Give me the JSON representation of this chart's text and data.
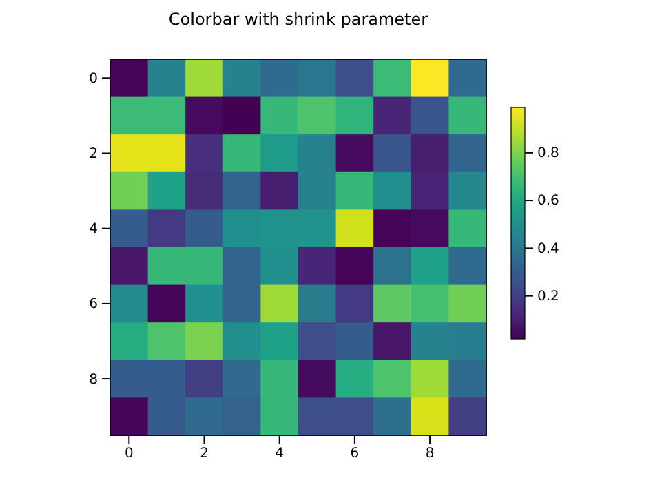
{
  "chart_data": {
    "type": "heatmap",
    "title": "Colorbar with shrink parameter",
    "categories": [
      "0",
      null,
      "2",
      null,
      "4",
      null,
      "6",
      null,
      "8",
      null
    ],
    "y_categories": [
      "0",
      null,
      "2",
      null,
      "4",
      null,
      "6",
      null,
      "8",
      null
    ],
    "cells": [
      [
        0.03,
        0.45,
        0.85,
        0.45,
        0.35,
        0.4,
        0.25,
        0.68,
        0.99,
        0.35
      ],
      [
        0.68,
        0.68,
        0.05,
        0.02,
        0.67,
        0.72,
        0.65,
        0.12,
        0.28,
        0.67
      ],
      [
        0.95,
        0.95,
        0.15,
        0.67,
        0.55,
        0.45,
        0.05,
        0.28,
        0.1,
        0.33
      ],
      [
        0.78,
        0.58,
        0.14,
        0.33,
        0.1,
        0.45,
        0.67,
        0.5,
        0.12,
        0.47
      ],
      [
        0.3,
        0.18,
        0.3,
        0.5,
        0.52,
        0.52,
        0.92,
        0.03,
        0.05,
        0.67
      ],
      [
        0.08,
        0.67,
        0.67,
        0.33,
        0.5,
        0.12,
        0.03,
        0.38,
        0.57,
        0.35
      ],
      [
        0.48,
        0.03,
        0.5,
        0.33,
        0.85,
        0.42,
        0.18,
        0.75,
        0.7,
        0.78
      ],
      [
        0.62,
        0.72,
        0.8,
        0.5,
        0.57,
        0.25,
        0.3,
        0.08,
        0.45,
        0.43
      ],
      [
        0.3,
        0.3,
        0.2,
        0.35,
        0.67,
        0.05,
        0.62,
        0.72,
        0.85,
        0.35
      ],
      [
        0.03,
        0.3,
        0.35,
        0.32,
        0.67,
        0.25,
        0.25,
        0.37,
        0.93,
        0.2
      ]
    ],
    "clim": [
      0.02,
      0.99
    ],
    "cticks": [
      0.2,
      0.4,
      0.6,
      0.8
    ]
  }
}
